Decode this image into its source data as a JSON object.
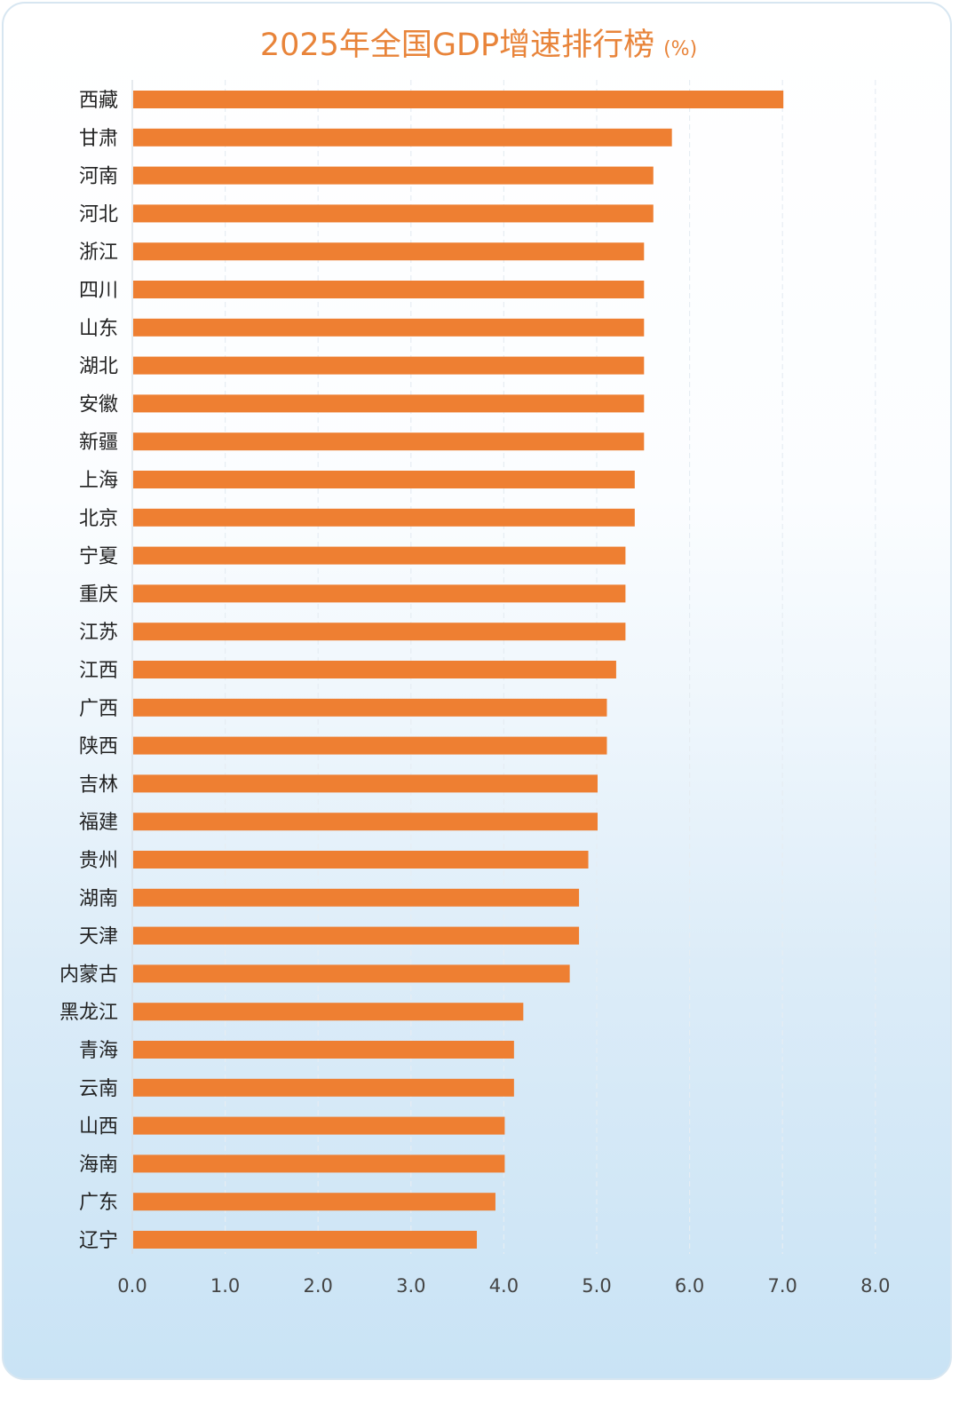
{
  "chart_data": {
    "type": "bar",
    "orientation": "horizontal",
    "title": "2025年全国GDP增速排行榜",
    "unit": "(%)",
    "categories": [
      "西藏",
      "甘肃",
      "河南",
      "河北",
      "浙江",
      "四川",
      "山东",
      "湖北",
      "安徽",
      "新疆",
      "上海",
      "北京",
      "宁夏",
      "重庆",
      "江苏",
      "江西",
      "广西",
      "陕西",
      "吉林",
      "福建",
      "贵州",
      "湖南",
      "天津",
      "内蒙古",
      "黑龙江",
      "青海",
      "云南",
      "山西",
      "海南",
      "广东",
      "辽宁"
    ],
    "values": [
      7.0,
      5.8,
      5.6,
      5.6,
      5.5,
      5.5,
      5.5,
      5.5,
      5.5,
      5.5,
      5.4,
      5.4,
      5.3,
      5.3,
      5.3,
      5.2,
      5.1,
      5.1,
      5.0,
      5.0,
      4.9,
      4.8,
      4.8,
      4.7,
      4.2,
      4.1,
      4.1,
      4.0,
      4.0,
      3.9,
      3.7
    ],
    "xlim": [
      0,
      8
    ],
    "xticks": [
      "0.0",
      "1.0",
      "2.0",
      "3.0",
      "4.0",
      "5.0",
      "6.0",
      "7.0",
      "8.0"
    ],
    "grid": true,
    "bar_color": "#ee7f32"
  }
}
